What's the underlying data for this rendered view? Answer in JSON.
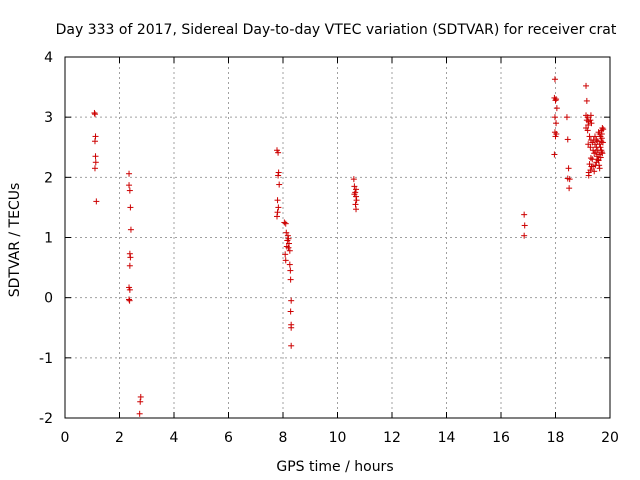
{
  "chart_data": {
    "type": "scatter",
    "title": "Day 333 of 2017, Sidereal Day-to-day VTEC variation (SDTVAR) for receiver crat",
    "xlabel": "GPS time / hours",
    "ylabel": "SDTVAR / TECUs",
    "xlim": [
      0,
      20
    ],
    "ylim": [
      -2,
      4
    ],
    "xticks": [
      0,
      2,
      4,
      6,
      8,
      10,
      12,
      14,
      16,
      18,
      20
    ],
    "yticks": [
      -2,
      -1,
      0,
      1,
      2,
      3,
      4
    ],
    "grid": true,
    "marker": "+",
    "series": [
      {
        "name": "SDTVAR",
        "color": "#cc0000",
        "points": [
          [
            1.08,
            3.07
          ],
          [
            1.1,
            3.05
          ],
          [
            1.12,
            2.68
          ],
          [
            1.1,
            2.6
          ],
          [
            1.12,
            2.35
          ],
          [
            1.13,
            2.25
          ],
          [
            1.1,
            2.15
          ],
          [
            1.15,
            1.6
          ],
          [
            2.35,
            2.06
          ],
          [
            2.35,
            1.87
          ],
          [
            2.38,
            1.78
          ],
          [
            2.4,
            1.5
          ],
          [
            2.42,
            1.13
          ],
          [
            2.38,
            0.73
          ],
          [
            2.4,
            0.67
          ],
          [
            2.38,
            0.53
          ],
          [
            2.35,
            0.17
          ],
          [
            2.38,
            0.13
          ],
          [
            2.35,
            -0.03
          ],
          [
            2.37,
            -0.05
          ],
          [
            2.78,
            -1.65
          ],
          [
            2.76,
            -1.73
          ],
          [
            2.74,
            -1.93
          ],
          [
            7.78,
            2.45
          ],
          [
            7.82,
            2.41
          ],
          [
            7.84,
            2.08
          ],
          [
            7.82,
            2.03
          ],
          [
            7.86,
            1.88
          ],
          [
            7.8,
            1.62
          ],
          [
            7.83,
            1.5
          ],
          [
            7.8,
            1.42
          ],
          [
            7.78,
            1.35
          ],
          [
            8.05,
            1.25
          ],
          [
            8.1,
            1.23
          ],
          [
            8.12,
            1.08
          ],
          [
            8.18,
            1.03
          ],
          [
            8.2,
            0.98
          ],
          [
            8.16,
            0.95
          ],
          [
            8.22,
            0.9
          ],
          [
            8.14,
            0.85
          ],
          [
            8.2,
            0.83
          ],
          [
            8.25,
            0.78
          ],
          [
            8.08,
            0.72
          ],
          [
            8.1,
            0.62
          ],
          [
            8.25,
            0.55
          ],
          [
            8.27,
            0.45
          ],
          [
            8.28,
            0.3
          ],
          [
            8.3,
            -0.05
          ],
          [
            8.28,
            -0.23
          ],
          [
            8.3,
            -0.45
          ],
          [
            8.3,
            -0.5
          ],
          [
            8.3,
            -0.8
          ],
          [
            10.6,
            1.97
          ],
          [
            10.62,
            1.85
          ],
          [
            10.68,
            1.8
          ],
          [
            10.65,
            1.75
          ],
          [
            10.62,
            1.72
          ],
          [
            10.68,
            1.68
          ],
          [
            10.7,
            1.62
          ],
          [
            10.66,
            1.55
          ],
          [
            10.68,
            1.47
          ],
          [
            16.85,
            1.38
          ],
          [
            16.87,
            1.2
          ],
          [
            16.85,
            1.03
          ],
          [
            17.98,
            3.63
          ],
          [
            17.96,
            3.32
          ],
          [
            18.02,
            3.3
          ],
          [
            18.0,
            3.28
          ],
          [
            18.05,
            3.15
          ],
          [
            17.98,
            3.0
          ],
          [
            18.02,
            2.9
          ],
          [
            17.98,
            2.75
          ],
          [
            18.03,
            2.72
          ],
          [
            18.0,
            2.68
          ],
          [
            17.96,
            2.38
          ],
          [
            18.42,
            3.0
          ],
          [
            18.45,
            2.63
          ],
          [
            18.48,
            2.15
          ],
          [
            18.45,
            1.98
          ],
          [
            18.52,
            1.97
          ],
          [
            18.5,
            1.82
          ],
          [
            19.12,
            3.52
          ],
          [
            19.15,
            3.27
          ],
          [
            19.12,
            3.03
          ],
          [
            19.18,
            3.0
          ],
          [
            19.15,
            2.95
          ],
          [
            19.22,
            2.93
          ],
          [
            19.2,
            2.87
          ],
          [
            19.28,
            2.95
          ],
          [
            19.12,
            2.82
          ],
          [
            19.18,
            2.78
          ],
          [
            19.3,
            3.03
          ],
          [
            19.32,
            2.9
          ],
          [
            19.25,
            2.68
          ],
          [
            19.3,
            2.62
          ],
          [
            19.35,
            2.58
          ],
          [
            19.2,
            2.55
          ],
          [
            19.28,
            2.5
          ],
          [
            19.38,
            2.45
          ],
          [
            19.42,
            2.4
          ],
          [
            19.3,
            2.32
          ],
          [
            19.35,
            2.3
          ],
          [
            19.25,
            2.22
          ],
          [
            19.32,
            2.18
          ],
          [
            19.28,
            2.12
          ],
          [
            19.22,
            2.08
          ],
          [
            19.22,
            2.03
          ],
          [
            19.45,
            2.55
          ],
          [
            19.5,
            2.5
          ],
          [
            19.48,
            2.42
          ],
          [
            19.52,
            2.35
          ],
          [
            19.55,
            2.3
          ],
          [
            19.58,
            2.28
          ],
          [
            19.6,
            2.2
          ],
          [
            19.62,
            2.15
          ],
          [
            19.55,
            2.6
          ],
          [
            19.62,
            2.55
          ],
          [
            19.65,
            2.5
          ],
          [
            19.68,
            2.45
          ],
          [
            19.7,
            2.42
          ],
          [
            19.72,
            2.4
          ],
          [
            19.58,
            2.75
          ],
          [
            19.62,
            2.72
          ],
          [
            19.65,
            2.68
          ],
          [
            19.7,
            2.65
          ],
          [
            19.68,
            2.78
          ],
          [
            19.72,
            2.82
          ],
          [
            19.75,
            2.8
          ],
          [
            19.7,
            2.72
          ],
          [
            19.68,
            2.6
          ],
          [
            19.74,
            2.58
          ],
          [
            19.4,
            2.62
          ],
          [
            19.45,
            2.68
          ],
          [
            19.5,
            2.25
          ],
          [
            19.38,
            2.18
          ],
          [
            19.42,
            2.1
          ],
          [
            19.46,
            2.2
          ],
          [
            19.6,
            2.38
          ],
          [
            19.66,
            2.33
          ],
          [
            19.55,
            2.45
          ],
          [
            19.5,
            2.62
          ]
        ]
      }
    ]
  }
}
